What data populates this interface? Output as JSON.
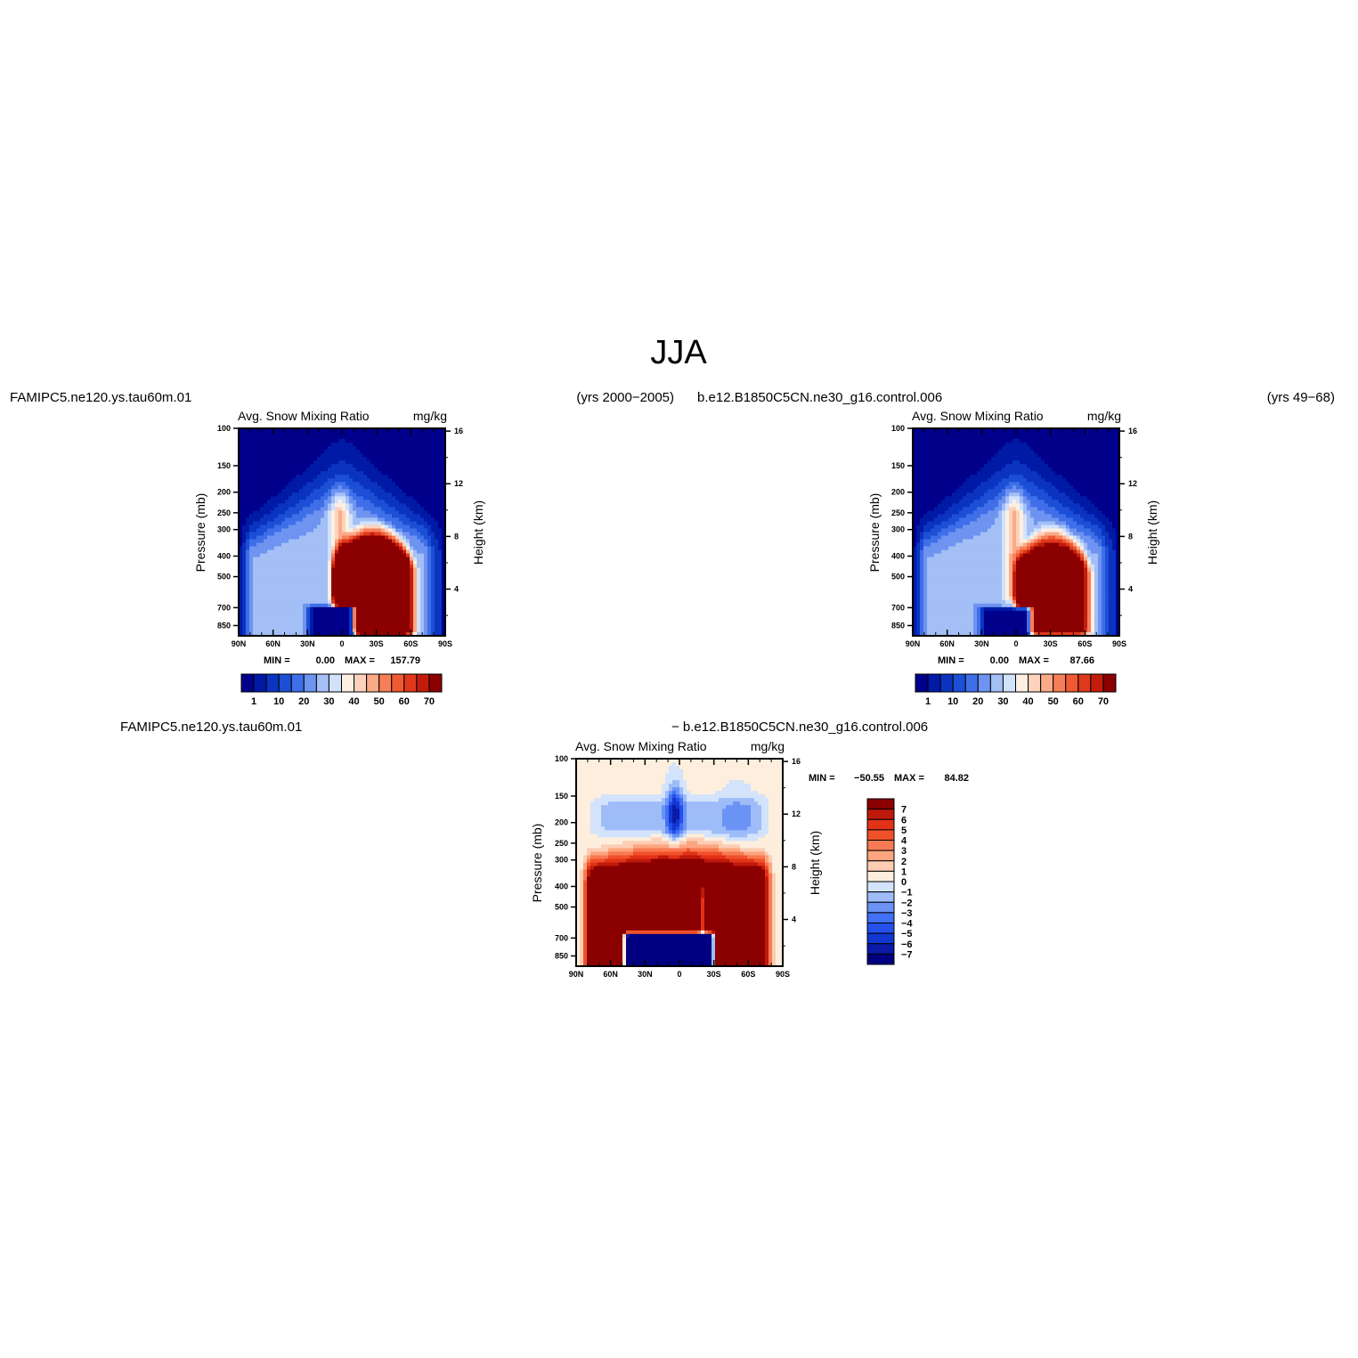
{
  "title": "JJA",
  "palettes": {
    "abs": [
      "#00008b",
      "#001aa6",
      "#0a34c0",
      "#1c4fd6",
      "#3f6fe8",
      "#6f93f0",
      "#a3bff6",
      "#d1e2fb",
      "#fdf0e2",
      "#fdd2bc",
      "#fbaa88",
      "#f77f58",
      "#ef5a33",
      "#e0381c",
      "#c41c0c",
      "#8b0000"
    ],
    "diff": [
      "#000080",
      "#0a1aa8",
      "#1236d0",
      "#2450ec",
      "#4270f4",
      "#6b93f6",
      "#9dbcf8",
      "#d2e3fb",
      "#fdeedd",
      "#fdcdb4",
      "#fca47e",
      "#f87a52",
      "#f0512a",
      "#e23217",
      "#bf190b",
      "#8b0000"
    ]
  },
  "chart_data": [
    {
      "type": "heatmap",
      "case": "FAMIPC5.ne120.ys.tau60m.01",
      "years": "(yrs 2000−2005)",
      "title": "Avg. Snow Mixing Ratio",
      "units": "mg/kg",
      "ylabel": "Pressure (mb)",
      "y2label": "Height (km)",
      "x_ticks": [
        "90N",
        "60N",
        "30N",
        "0",
        "30S",
        "60S",
        "90S"
      ],
      "y_ticks": [
        100,
        150,
        200,
        250,
        300,
        400,
        500,
        700,
        850
      ],
      "y2_ticks": [
        4,
        8,
        12,
        16
      ],
      "stats": {
        "min_label": "MIN =",
        "min": "0.00",
        "max_label": "MAX =",
        "max": "157.79"
      },
      "colorbar": {
        "labels": [
          "1",
          "10",
          "20",
          "30",
          "40",
          "50",
          "60",
          "70"
        ]
      },
      "features": {
        "core_lat": [
          -58,
          5
        ],
        "core_top_p": 290,
        "core_amp": 82,
        "sh_lat": [
          12,
          42
        ],
        "sh_top_p": 380,
        "sh_amp": 74,
        "low_lat": [
          -30,
          12
        ],
        "low_top_p": 690,
        "low_amp": 0
      }
    },
    {
      "type": "heatmap",
      "case": "b.e12.B1850C5CN.ne30_g16.control.006",
      "years": "(yrs 49−68)",
      "title": "Avg. Snow Mixing Ratio",
      "units": "mg/kg",
      "ylabel": "Pressure (mb)",
      "y2label": "Height (km)",
      "x_ticks": [
        "90N",
        "60N",
        "30N",
        "0",
        "30S",
        "60S",
        "90S"
      ],
      "y_ticks": [
        100,
        150,
        200,
        250,
        300,
        400,
        500,
        700,
        850
      ],
      "y2_ticks": [
        4,
        8,
        12,
        16
      ],
      "stats": {
        "min_label": "MIN =",
        "min": "0.00",
        "max_label": "MAX =",
        "max": "87.66"
      },
      "colorbar": {
        "labels": [
          "1",
          "10",
          "20",
          "30",
          "40",
          "50",
          "60",
          "70"
        ]
      },
      "features": {
        "core_lat": [
          -60,
          -2
        ],
        "core_top_p": 300,
        "core_amp": 60,
        "sh_lat": [
          15,
          45
        ],
        "sh_top_p": 420,
        "sh_amp": 62,
        "low_lat": [
          -32,
          14
        ],
        "low_top_p": 700,
        "low_amp": 0
      }
    },
    {
      "type": "heatmap",
      "case": "FAMIPC5.ne120.ys.tau60m.01",
      "case2": "− b.e12.B1850C5CN.ne30_g16.control.006",
      "title": "Avg. Snow Mixing Ratio",
      "units": "mg/kg",
      "ylabel": "Pressure (mb)",
      "y2label": "Height (km)",
      "x_ticks": [
        "90N",
        "60N",
        "30N",
        "0",
        "30S",
        "60S",
        "90S"
      ],
      "y_ticks": [
        100,
        150,
        200,
        250,
        300,
        400,
        500,
        700,
        850
      ],
      "y2_ticks": [
        4,
        8,
        12,
        16
      ],
      "stats": {
        "min_label": "MIN =",
        "min": "−50.55",
        "max_label": "MAX =",
        "max": "84.82"
      },
      "colorbar": {
        "labels": [
          "7",
          "6",
          "5",
          "4",
          "3",
          "2",
          "1",
          "0",
          "−1",
          "−2",
          "−3",
          "−4",
          "−5",
          "−6",
          "−7"
        ]
      }
    }
  ]
}
